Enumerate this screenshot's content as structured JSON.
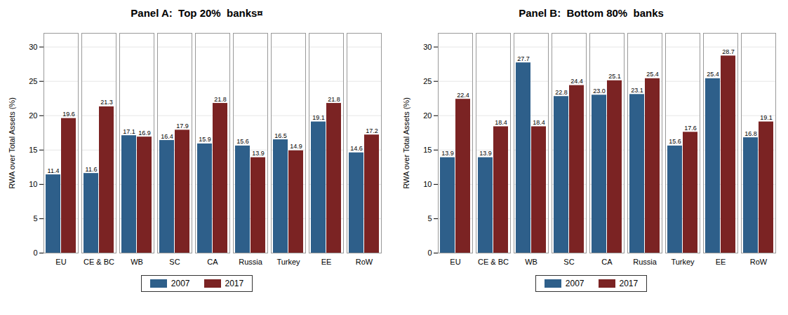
{
  "chart_data": [
    {
      "type": "bar",
      "title": "Panel A:  Top 20%  banks¤",
      "categories": [
        "EU",
        "CE & BC",
        "WB",
        "SC",
        "CA",
        "Russia",
        "Turkey",
        "EE",
        "RoW"
      ],
      "series": [
        {
          "name": "2007",
          "color": "#2e5f8a",
          "values": [
            11.4,
            11.6,
            17.1,
            16.4,
            15.9,
            15.6,
            16.5,
            19.1,
            14.6
          ]
        },
        {
          "name": "2017",
          "color": "#7b2323",
          "values": [
            19.6,
            21.3,
            16.9,
            17.9,
            21.8,
            13.9,
            14.9,
            21.8,
            17.2
          ]
        }
      ],
      "ylabel": "RWA over Total Assets (%)",
      "ylim": [
        0,
        32
      ],
      "yticks": [
        0,
        5,
        10,
        15,
        20,
        25,
        30
      ],
      "grid": true,
      "data_labels": true,
      "legend": "bottom"
    },
    {
      "type": "bar",
      "title": "Panel B:  Bottom 80%  banks",
      "categories": [
        "EU",
        "CE & BC",
        "WB",
        "SC",
        "CA",
        "Russia",
        "Turkey",
        "EE",
        "RoW"
      ],
      "series": [
        {
          "name": "2007",
          "color": "#2e5f8a",
          "values": [
            13.9,
            13.9,
            27.7,
            22.8,
            23.0,
            23.1,
            15.6,
            25.4,
            16.8
          ],
          "value_labels": [
            "13.9",
            "13.9",
            "27.7",
            "22.8",
            "23.0",
            "23.1",
            "15.6",
            "25.4",
            "16.8"
          ]
        },
        {
          "name": "2017",
          "color": "#7b2323",
          "values": [
            22.4,
            18.4,
            18.4,
            24.4,
            25.1,
            25.4,
            17.6,
            28.7,
            19.1
          ]
        }
      ],
      "ylabel": "RWA over Total Assets (%)",
      "ylim": [
        0,
        32
      ],
      "yticks": [
        0,
        5,
        10,
        15,
        20,
        25,
        30
      ],
      "grid": true,
      "data_labels": true,
      "legend": "bottom"
    }
  ]
}
